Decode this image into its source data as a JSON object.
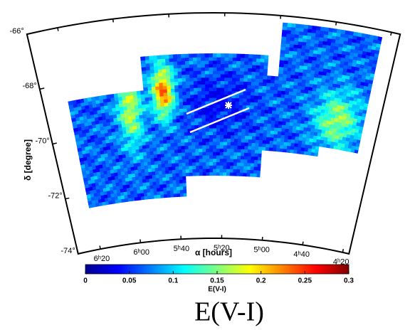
{
  "chart_data": {
    "type": "heatmap",
    "xlabel": "α [hours]",
    "ylabel": "δ [degree]",
    "xlim": [
      6.52,
      4.28
    ],
    "ylim": [
      -74,
      -66
    ],
    "xticks": [
      {
        "value": 6.3333,
        "label": "6ʰ20"
      },
      {
        "value": 6.0,
        "label": "6ʰ00"
      },
      {
        "value": 5.6667,
        "label": "5ʰ40"
      },
      {
        "value": 5.3333,
        "label": "5ʰ20"
      },
      {
        "value": 5.0,
        "label": "5ʰ00"
      },
      {
        "value": 4.6667,
        "label": "4ʰ40"
      },
      {
        "value": 4.3333,
        "label": "4ʰ20"
      }
    ],
    "yticks": [
      {
        "value": -66,
        "label": "-66°"
      },
      {
        "value": -68,
        "label": "-68°"
      },
      {
        "value": -70,
        "label": "-70°"
      },
      {
        "value": -72,
        "label": "-72°"
      },
      {
        "value": -74,
        "label": "-74°"
      }
    ],
    "colorbar": {
      "label": "E(V-I)",
      "clim": [
        0,
        0.3
      ],
      "ticks": [
        0,
        0.05,
        0.1,
        0.15,
        0.2,
        0.25,
        0.3
      ],
      "colormap": "jet"
    },
    "caption": "E(V-I)"
  }
}
